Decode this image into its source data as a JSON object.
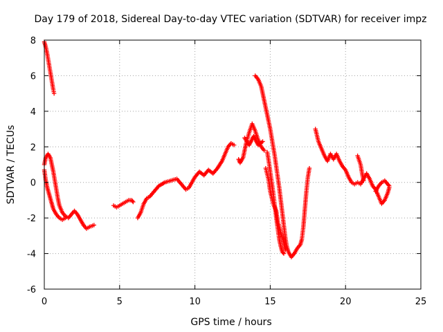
{
  "chart_data": {
    "type": "scatter",
    "title": "Day 179 of 2018, Sidereal Day-to-day VTEC variation (SDTVAR) for receiver impz",
    "xlabel": "GPS time / hours",
    "ylabel": "SDTVAR / TECUs",
    "xlim": [
      0,
      25
    ],
    "ylim": [
      -6,
      8
    ],
    "xticks": [
      0,
      5,
      10,
      15,
      20,
      25
    ],
    "yticks": [
      -6,
      -4,
      -2,
      0,
      2,
      4,
      6,
      8
    ],
    "xtick_labels": [
      "0",
      "5",
      "10",
      "15",
      "20",
      "25"
    ],
    "ytick_labels": [
      "-6",
      "-4",
      "-2",
      "0",
      "2",
      "4",
      "6",
      "8"
    ],
    "grid": true,
    "marker": "+",
    "color": "#ff0000",
    "series": [
      {
        "name": "SDTVAR",
        "segments": [
          [
            [
              0.0,
              7.9
            ],
            [
              0.1,
              7.6
            ],
            [
              0.2,
              7.2
            ],
            [
              0.3,
              6.7
            ],
            [
              0.4,
              6.2
            ],
            [
              0.5,
              5.7
            ],
            [
              0.6,
              5.2
            ],
            [
              0.65,
              5.0
            ]
          ],
          [
            [
              0.0,
              1.0
            ],
            [
              0.1,
              1.4
            ],
            [
              0.25,
              1.6
            ],
            [
              0.4,
              1.4
            ],
            [
              0.5,
              1.0
            ],
            [
              0.6,
              0.6
            ],
            [
              0.7,
              0.1
            ],
            [
              0.8,
              -0.4
            ],
            [
              0.9,
              -0.9
            ],
            [
              1.0,
              -1.3
            ],
            [
              1.2,
              -1.7
            ],
            [
              1.4,
              -1.9
            ],
            [
              1.6,
              -2.0
            ],
            [
              1.8,
              -1.8
            ],
            [
              2.0,
              -1.6
            ],
            [
              2.2,
              -1.8
            ],
            [
              2.4,
              -2.1
            ],
            [
              2.6,
              -2.4
            ],
            [
              2.8,
              -2.6
            ],
            [
              3.0,
              -2.5
            ],
            [
              3.3,
              -2.4
            ]
          ],
          [
            [
              0.0,
              0.7
            ],
            [
              0.1,
              0.1
            ],
            [
              0.2,
              -0.3
            ],
            [
              0.3,
              -0.6
            ],
            [
              0.4,
              -0.9
            ],
            [
              0.5,
              -1.2
            ],
            [
              0.6,
              -1.5
            ],
            [
              0.8,
              -1.8
            ],
            [
              1.0,
              -2.0
            ],
            [
              1.2,
              -2.1
            ],
            [
              1.4,
              -2.0
            ]
          ],
          [
            [
              4.6,
              -1.3
            ],
            [
              4.8,
              -1.4
            ],
            [
              5.0,
              -1.3
            ],
            [
              5.2,
              -1.2
            ],
            [
              5.4,
              -1.1
            ],
            [
              5.6,
              -1.0
            ],
            [
              5.8,
              -1.0
            ],
            [
              5.9,
              -1.1
            ]
          ],
          [
            [
              6.2,
              -2.0
            ],
            [
              6.4,
              -1.7
            ],
            [
              6.6,
              -1.2
            ],
            [
              6.8,
              -0.9
            ],
            [
              7.0,
              -0.8
            ],
            [
              7.3,
              -0.5
            ],
            [
              7.6,
              -0.2
            ],
            [
              8.0,
              0.0
            ],
            [
              8.4,
              0.1
            ],
            [
              8.8,
              0.2
            ],
            [
              9.0,
              0.0
            ],
            [
              9.2,
              -0.2
            ],
            [
              9.4,
              -0.4
            ],
            [
              9.6,
              -0.3
            ],
            [
              9.8,
              0.0
            ],
            [
              10.0,
              0.3
            ],
            [
              10.3,
              0.6
            ],
            [
              10.6,
              0.4
            ],
            [
              10.9,
              0.7
            ],
            [
              11.2,
              0.5
            ],
            [
              11.5,
              0.8
            ],
            [
              11.8,
              1.2
            ],
            [
              12.0,
              1.6
            ],
            [
              12.2,
              2.0
            ],
            [
              12.4,
              2.2
            ],
            [
              12.6,
              2.1
            ]
          ],
          [
            [
              12.9,
              1.3
            ],
            [
              13.0,
              1.1
            ],
            [
              13.2,
              1.4
            ],
            [
              13.4,
              2.2
            ],
            [
              13.6,
              2.8
            ],
            [
              13.8,
              3.3
            ],
            [
              14.0,
              2.9
            ],
            [
              14.2,
              2.4
            ],
            [
              14.4,
              2.0
            ],
            [
              14.6,
              1.8
            ]
          ],
          [
            [
              13.3,
              2.5
            ],
            [
              13.6,
              2.1
            ],
            [
              13.9,
              2.6
            ],
            [
              14.2,
              2.1
            ],
            [
              14.5,
              2.3
            ]
          ],
          [
            [
              14.0,
              6.0
            ],
            [
              14.2,
              5.8
            ],
            [
              14.4,
              5.4
            ],
            [
              14.6,
              4.6
            ],
            [
              14.8,
              3.8
            ],
            [
              15.0,
              3.0
            ],
            [
              15.1,
              2.5
            ],
            [
              15.2,
              2.0
            ],
            [
              15.3,
              1.5
            ],
            [
              15.4,
              0.9
            ],
            [
              15.5,
              0.3
            ],
            [
              15.6,
              -0.3
            ],
            [
              15.7,
              -1.0
            ],
            [
              15.8,
              -1.7
            ],
            [
              15.9,
              -2.4
            ],
            [
              16.0,
              -3.1
            ],
            [
              16.1,
              -3.6
            ],
            [
              16.2,
              -3.9
            ],
            [
              16.4,
              -4.2
            ],
            [
              16.6,
              -4.0
            ],
            [
              16.8,
              -3.7
            ],
            [
              17.0,
              -3.5
            ],
            [
              17.1,
              -3.2
            ],
            [
              17.2,
              -2.5
            ],
            [
              17.3,
              -1.5
            ],
            [
              17.4,
              -0.5
            ],
            [
              17.5,
              0.3
            ],
            [
              17.6,
              0.8
            ]
          ],
          [
            [
              14.8,
              1.7
            ],
            [
              14.9,
              1.2
            ],
            [
              15.0,
              0.6
            ],
            [
              15.1,
              0.0
            ],
            [
              15.2,
              -0.6
            ],
            [
              15.3,
              -1.3
            ],
            [
              15.4,
              -2.0
            ],
            [
              15.5,
              -2.6
            ],
            [
              15.6,
              -3.2
            ],
            [
              15.7,
              -3.6
            ],
            [
              15.8,
              -3.9
            ],
            [
              15.9,
              -4.0
            ]
          ],
          [
            [
              14.7,
              0.8
            ],
            [
              14.9,
              0.1
            ],
            [
              15.0,
              -0.5
            ],
            [
              15.2,
              -1.2
            ],
            [
              15.4,
              -1.6
            ],
            [
              15.5,
              -2.2
            ],
            [
              15.7,
              -2.8
            ],
            [
              15.9,
              -3.4
            ],
            [
              16.0,
              -3.8
            ]
          ],
          [
            [
              18.0,
              3.0
            ],
            [
              18.2,
              2.3
            ],
            [
              18.4,
              1.9
            ],
            [
              18.6,
              1.5
            ],
            [
              18.8,
              1.2
            ],
            [
              19.0,
              1.6
            ],
            [
              19.2,
              1.3
            ],
            [
              19.4,
              1.6
            ],
            [
              19.6,
              1.2
            ],
            [
              19.8,
              0.9
            ],
            [
              20.0,
              0.7
            ],
            [
              20.2,
              0.3
            ],
            [
              20.4,
              0.0
            ],
            [
              20.6,
              -0.1
            ],
            [
              20.8,
              0.0
            ],
            [
              21.0,
              -0.1
            ],
            [
              21.2,
              0.2
            ],
            [
              21.4,
              0.5
            ],
            [
              21.6,
              0.2
            ],
            [
              21.8,
              -0.2
            ],
            [
              22.0,
              -0.4
            ],
            [
              22.2,
              -0.8
            ],
            [
              22.4,
              -1.2
            ],
            [
              22.6,
              -1.0
            ],
            [
              22.8,
              -0.6
            ],
            [
              22.9,
              -0.3
            ]
          ],
          [
            [
              20.8,
              1.5
            ],
            [
              21.0,
              1.0
            ],
            [
              21.1,
              0.5
            ],
            [
              21.2,
              0.1
            ]
          ],
          [
            [
              22.0,
              -0.5
            ],
            [
              22.2,
              -0.2
            ],
            [
              22.4,
              0.0
            ],
            [
              22.6,
              0.1
            ],
            [
              22.8,
              -0.1
            ],
            [
              22.9,
              -0.2
            ]
          ]
        ]
      }
    ]
  }
}
